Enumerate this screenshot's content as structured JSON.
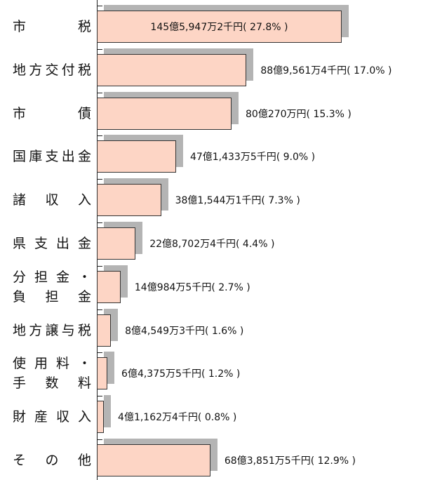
{
  "chart_data": {
    "type": "bar",
    "orientation": "horizontal",
    "categories": [
      [
        "市税"
      ],
      [
        "地方交付税"
      ],
      [
        "市債"
      ],
      [
        "国庫支出金"
      ],
      [
        "諸収入"
      ],
      [
        "県支出金"
      ],
      [
        "分担金・",
        "負担金"
      ],
      [
        "地方譲与税"
      ],
      [
        "使用料・",
        "手数料"
      ],
      [
        "財産収入"
      ],
      [
        "その他"
      ]
    ],
    "values": [
      27.8,
      17.0,
      15.3,
      9.0,
      7.3,
      4.4,
      2.7,
      1.6,
      1.2,
      0.8,
      12.9
    ],
    "value_labels": [
      "145億5,947万2千円( 27.8% )",
      "88億9,561万4千円( 17.0% )",
      "80億270万円( 15.3% )",
      "47億1,433万5千円( 9.0% )",
      "38億1,544万1千円( 7.3% )",
      "22億8,702万4千円( 4.4% )",
      "14億984万5千円( 2.7% )",
      "8億4,549万3千円( 1.6% )",
      "6億4,375万5千円( 1.2% )",
      "4億1,162万4千円( 0.8% )",
      "68億3,851万5千円( 12.9% )"
    ],
    "color": "#fdd5c5",
    "shadow_color": "#b4b4b4"
  }
}
